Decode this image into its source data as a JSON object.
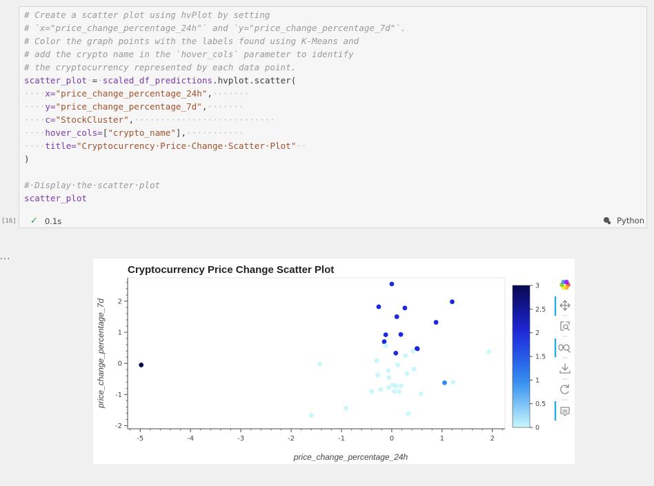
{
  "cell": {
    "execution_count": "[16]",
    "status_time": "0.1s",
    "language": "Python",
    "code_lines": [
      [
        {
          "t": "# Create a scatter plot using hvPlot by setting",
          "c": "cm"
        }
      ],
      [
        {
          "t": "# `x=\"price_change_percentage_24h\"` and `y=\"price_change_percentage_7d\"`.",
          "c": "cm"
        }
      ],
      [
        {
          "t": "# Color the graph points with the labels found using K-Means and",
          "c": "cm"
        }
      ],
      [
        {
          "t": "# add the crypto name in the `hover_cols` parameter to identify",
          "c": "cm"
        }
      ],
      [
        {
          "t": "# the cryptocurrency represented by each data point.",
          "c": "cm"
        }
      ],
      [
        {
          "t": "scatter_plot",
          "c": "var"
        },
        {
          "t": "·",
          "c": "ws"
        },
        {
          "t": "=",
          "c": ""
        },
        {
          "t": "·",
          "c": "ws"
        },
        {
          "t": "scaled_df_predictions",
          "c": "var"
        },
        {
          "t": ".hvplot.scatter(",
          "c": ""
        },
        {
          "t": " ",
          "c": "ws"
        }
      ],
      [
        {
          "t": "····",
          "c": "ws"
        },
        {
          "t": "x=",
          "c": "var"
        },
        {
          "t": "\"price_change_percentage_24h\"",
          "c": "str"
        },
        {
          "t": ",",
          "c": ""
        },
        {
          "t": "·······",
          "c": "ws"
        }
      ],
      [
        {
          "t": "····",
          "c": "ws"
        },
        {
          "t": "y=",
          "c": "var"
        },
        {
          "t": "\"price_change_percentage_7d\"",
          "c": "str"
        },
        {
          "t": ",",
          "c": ""
        },
        {
          "t": "·······",
          "c": "ws"
        }
      ],
      [
        {
          "t": "····",
          "c": "ws"
        },
        {
          "t": "c=",
          "c": "var"
        },
        {
          "t": "\"StockCluster\"",
          "c": "str"
        },
        {
          "t": ",",
          "c": ""
        },
        {
          "t": "···························",
          "c": "ws"
        }
      ],
      [
        {
          "t": "····",
          "c": "ws"
        },
        {
          "t": "hover_cols=",
          "c": "var"
        },
        {
          "t": "[",
          "c": ""
        },
        {
          "t": "\"crypto_name\"",
          "c": "str"
        },
        {
          "t": "],",
          "c": ""
        },
        {
          "t": "···········",
          "c": "ws"
        }
      ],
      [
        {
          "t": "····",
          "c": "ws"
        },
        {
          "t": "title=",
          "c": "var"
        },
        {
          "t": "\"Cryptocurrency·Price·Change·Scatter·Plot\"",
          "c": "str"
        },
        {
          "t": "··",
          "c": "ws"
        }
      ],
      [
        {
          "t": ")",
          "c": ""
        }
      ],
      [
        {
          "t": "",
          "c": ""
        }
      ],
      [
        {
          "t": "#·Display·the·scatter·plot",
          "c": "cm"
        },
        {
          "t": " ",
          "c": "ws"
        }
      ],
      [
        {
          "t": "scatter_plot",
          "c": "var"
        }
      ]
    ]
  },
  "output": {
    "ellipsis": "..."
  },
  "chart_data": {
    "type": "scatter",
    "title": "Cryptocurrency Price Change Scatter Plot",
    "xlabel": "price_change_percentage_24h",
    "ylabel": "price_change_percentage_7d",
    "xlim": [
      -5.25,
      2.25
    ],
    "ylim": [
      -2.1,
      2.75
    ],
    "xticks": [
      -5,
      -4,
      -3,
      -2,
      -1,
      0,
      1,
      2
    ],
    "yticks": [
      -2,
      -1,
      0,
      1,
      2
    ],
    "colorbar": {
      "label": "",
      "range": [
        0,
        3
      ],
      "ticks": [
        0,
        0.5,
        1,
        1.5,
        2,
        2.5,
        3
      ],
      "low": "#c9f7fb",
      "mid": "#2f8cf0",
      "high": "#08084f"
    },
    "points": [
      {
        "x": -4.98,
        "y": -0.05,
        "c": 3
      },
      {
        "x": -1.43,
        "y": -0.02,
        "c": 0
      },
      {
        "x": -0.91,
        "y": -1.44,
        "c": 0
      },
      {
        "x": -1.6,
        "y": -1.67,
        "c": 0
      },
      {
        "x": -0.26,
        "y": 1.82,
        "c": 2
      },
      {
        "x": 0.0,
        "y": 2.55,
        "c": 2
      },
      {
        "x": 0.1,
        "y": 1.5,
        "c": 2
      },
      {
        "x": 0.26,
        "y": 1.78,
        "c": 2
      },
      {
        "x": 1.2,
        "y": 1.98,
        "c": 2
      },
      {
        "x": 0.88,
        "y": 1.32,
        "c": 2
      },
      {
        "x": -0.12,
        "y": 0.92,
        "c": 2
      },
      {
        "x": 0.18,
        "y": 0.93,
        "c": 2
      },
      {
        "x": -0.15,
        "y": 0.7,
        "c": 2
      },
      {
        "x": 0.08,
        "y": 0.33,
        "c": 2
      },
      {
        "x": 0.51,
        "y": 0.47,
        "c": 2
      },
      {
        "x": 0.5,
        "y": 0.48,
        "c": 2
      },
      {
        "x": 1.05,
        "y": -0.62,
        "c": 1
      },
      {
        "x": 1.93,
        "y": 0.37,
        "c": 0
      },
      {
        "x": 1.22,
        "y": -0.6,
        "c": 0
      },
      {
        "x": -0.3,
        "y": 0.09,
        "c": 0
      },
      {
        "x": -0.12,
        "y": 0.57,
        "c": 0
      },
      {
        "x": 0.27,
        "y": 0.25,
        "c": 0
      },
      {
        "x": 0.42,
        "y": 0.4,
        "c": 0
      },
      {
        "x": 0.12,
        "y": -0.05,
        "c": 0
      },
      {
        "x": -0.07,
        "y": -0.23,
        "c": 0
      },
      {
        "x": -0.28,
        "y": -0.38,
        "c": 0
      },
      {
        "x": -0.06,
        "y": -0.45,
        "c": 0
      },
      {
        "x": 0.3,
        "y": -0.32,
        "c": 0
      },
      {
        "x": 0.44,
        "y": -0.18,
        "c": 0
      },
      {
        "x": 0.02,
        "y": -0.69,
        "c": 0
      },
      {
        "x": 0.08,
        "y": -0.72,
        "c": 0
      },
      {
        "x": 0.18,
        "y": -0.72,
        "c": 0
      },
      {
        "x": -0.06,
        "y": -0.78,
        "c": 0
      },
      {
        "x": -0.4,
        "y": -0.9,
        "c": 0
      },
      {
        "x": -0.22,
        "y": -0.84,
        "c": 0
      },
      {
        "x": 0.05,
        "y": -0.9,
        "c": 0
      },
      {
        "x": 0.15,
        "y": -0.91,
        "c": 0
      },
      {
        "x": 0.58,
        "y": -0.98,
        "c": 0
      },
      {
        "x": 0.33,
        "y": -1.62,
        "c": 0
      }
    ]
  }
}
